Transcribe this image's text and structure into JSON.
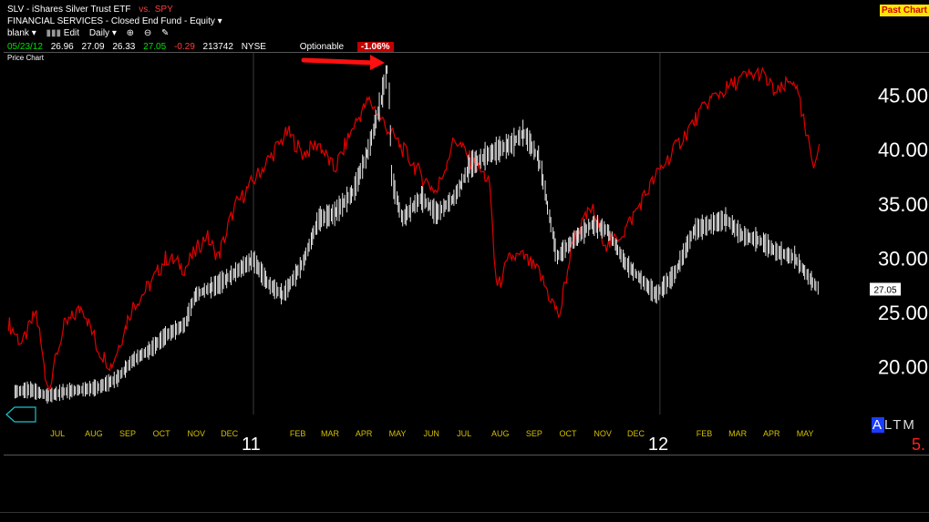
{
  "header": {
    "symbol": "SLV",
    "name": "- iShares Silver Trust ETF",
    "vs_label": "vs.",
    "compare_symbol": "SPY",
    "sector": "FINANCIAL SERVICES - Closed End Fund - Equity",
    "layout_menu": "blank",
    "edit_label": "Edit",
    "period_menu": "Daily",
    "quote": {
      "date": "05/23/12",
      "open": "26.96",
      "high": "27.09",
      "low": "26.33",
      "close": "27.05",
      "change": "-0.29",
      "volume": "213742",
      "exchange": "NYSE",
      "optionable": "Optionable",
      "pct_change": "-1.06%"
    },
    "past_chart_label": "Past Chart",
    "panel_label": "Price Chart"
  },
  "side_controls": {
    "range_buttons": [
      "A",
      "L",
      "T",
      "M"
    ],
    "selected_range": "A",
    "red_indicator": "5."
  },
  "colors": {
    "primary_series": "#e6e6e6",
    "compare_series": "#e00000",
    "month_labels": "#d4c000",
    "year_labels": "#ffffff",
    "arrow": "#ff1010"
  },
  "chart_data": {
    "type": "line",
    "title": "",
    "xlabel": "",
    "ylabel": "",
    "ylim": [
      15.5,
      48.5
    ],
    "y_ticks": [
      20,
      25,
      30,
      35,
      40,
      45
    ],
    "y_tick_labels": [
      "20.00",
      "25.00",
      "30.00",
      "35.00",
      "40.00",
      "45.00"
    ],
    "last_price_label": "27.05",
    "grid": "vertical lines at year boundaries",
    "x_month_ticks": [
      {
        "label": "JUL",
        "month": "2010-07"
      },
      {
        "label": "AUG",
        "month": "2010-08"
      },
      {
        "label": "SEP",
        "month": "2010-09"
      },
      {
        "label": "OCT",
        "month": "2010-10"
      },
      {
        "label": "NOV",
        "month": "2010-11"
      },
      {
        "label": "DEC",
        "month": "2010-12"
      },
      {
        "label": "FEB",
        "month": "2011-02"
      },
      {
        "label": "MAR",
        "month": "2011-03"
      },
      {
        "label": "APR",
        "month": "2011-04"
      },
      {
        "label": "MAY",
        "month": "2011-05"
      },
      {
        "label": "JUN",
        "month": "2011-06"
      },
      {
        "label": "JUL",
        "month": "2011-07"
      },
      {
        "label": "AUG",
        "month": "2011-08"
      },
      {
        "label": "SEP",
        "month": "2011-09"
      },
      {
        "label": "OCT",
        "month": "2011-10"
      },
      {
        "label": "NOV",
        "month": "2011-11"
      },
      {
        "label": "DEC",
        "month": "2011-12"
      },
      {
        "label": "FEB",
        "month": "2012-02"
      },
      {
        "label": "MAR",
        "month": "2012-03"
      },
      {
        "label": "APR",
        "month": "2012-04"
      },
      {
        "label": "MAY",
        "month": "2012-05"
      }
    ],
    "x_year_ticks": [
      {
        "label": "11",
        "month": "2011-01"
      },
      {
        "label": "12",
        "month": "2012-01"
      }
    ],
    "x_range": [
      "2010-05-25",
      "2012-06-30"
    ],
    "series": [
      {
        "symbol": "SLV",
        "style": "bar",
        "x": [
          "2010-06-01",
          "2010-06-15",
          "2010-07-01",
          "2010-07-15",
          "2010-08-01",
          "2010-08-15",
          "2010-09-01",
          "2010-09-15",
          "2010-10-01",
          "2010-10-15",
          "2010-11-01",
          "2010-11-10",
          "2010-11-20",
          "2010-12-01",
          "2010-12-15",
          "2011-01-01",
          "2011-01-15",
          "2011-01-28",
          "2011-02-15",
          "2011-03-01",
          "2011-03-15",
          "2011-04-01",
          "2011-04-15",
          "2011-04-25",
          "2011-05-02",
          "2011-05-06",
          "2011-05-15",
          "2011-06-01",
          "2011-06-15",
          "2011-07-01",
          "2011-07-15",
          "2011-08-01",
          "2011-08-22",
          "2011-09-01",
          "2011-09-15",
          "2011-09-22",
          "2011-10-01",
          "2011-10-15",
          "2011-11-01",
          "2011-11-15",
          "2011-12-01",
          "2011-12-15",
          "2011-12-29",
          "2012-01-15",
          "2012-02-01",
          "2012-02-15",
          "2012-03-01",
          "2012-03-15",
          "2012-04-01",
          "2012-04-15",
          "2012-05-01",
          "2012-05-15",
          "2012-05-23"
        ],
        "values": [
          17.6,
          17.8,
          17.2,
          17.6,
          17.8,
          18.0,
          18.8,
          20.5,
          21.5,
          22.8,
          23.8,
          26.5,
          27.0,
          27.5,
          28.5,
          29.8,
          27.5,
          26.5,
          29.5,
          33.5,
          34.0,
          36.0,
          40.0,
          44.0,
          47.5,
          37.0,
          33.5,
          35.5,
          34.0,
          35.5,
          38.5,
          39.5,
          40.5,
          41.5,
          39.0,
          35.0,
          30.0,
          31.5,
          33.0,
          32.5,
          29.5,
          28.0,
          26.5,
          28.5,
          32.5,
          33.0,
          33.5,
          32.0,
          31.5,
          30.5,
          30.0,
          28.0,
          27.05
        ]
      },
      {
        "symbol": "SPY",
        "style": "line",
        "x": [
          "2010-05-26",
          "2010-06-08",
          "2010-06-20",
          "2010-07-01",
          "2010-07-15",
          "2010-08-01",
          "2010-08-15",
          "2010-08-27",
          "2010-09-15",
          "2010-10-01",
          "2010-10-15",
          "2010-11-01",
          "2010-11-20",
          "2010-12-01",
          "2010-12-15",
          "2011-01-01",
          "2011-01-15",
          "2011-02-01",
          "2011-02-15",
          "2011-03-01",
          "2011-03-15",
          "2011-04-01",
          "2011-04-15",
          "2011-05-01",
          "2011-05-15",
          "2011-06-01",
          "2011-06-15",
          "2011-07-01",
          "2011-07-15",
          "2011-08-01",
          "2011-08-08",
          "2011-08-20",
          "2011-09-01",
          "2011-09-15",
          "2011-10-03",
          "2011-10-15",
          "2011-11-01",
          "2011-11-15",
          "2011-12-01",
          "2011-12-15",
          "2012-01-01",
          "2012-01-15",
          "2012-02-01",
          "2012-02-15",
          "2012-03-01",
          "2012-03-15",
          "2012-04-01",
          "2012-04-15",
          "2012-05-01",
          "2012-05-10",
          "2012-05-18",
          "2012-05-23"
        ],
        "values": [
          24.0,
          22.0,
          25.0,
          17.8,
          23.5,
          25.5,
          21.5,
          20.0,
          25.5,
          27.5,
          30.0,
          29.0,
          32.0,
          30.0,
          34.5,
          37.0,
          39.0,
          41.5,
          39.5,
          40.5,
          38.0,
          42.0,
          44.5,
          42.0,
          40.0,
          37.5,
          36.0,
          41.0,
          39.0,
          37.0,
          27.0,
          30.0,
          30.0,
          28.5,
          24.5,
          31.5,
          34.5,
          31.0,
          32.5,
          35.0,
          38.0,
          40.0,
          42.5,
          44.5,
          45.5,
          46.5,
          47.0,
          45.0,
          46.5,
          42.0,
          38.5,
          40.5
        ]
      }
    ]
  }
}
